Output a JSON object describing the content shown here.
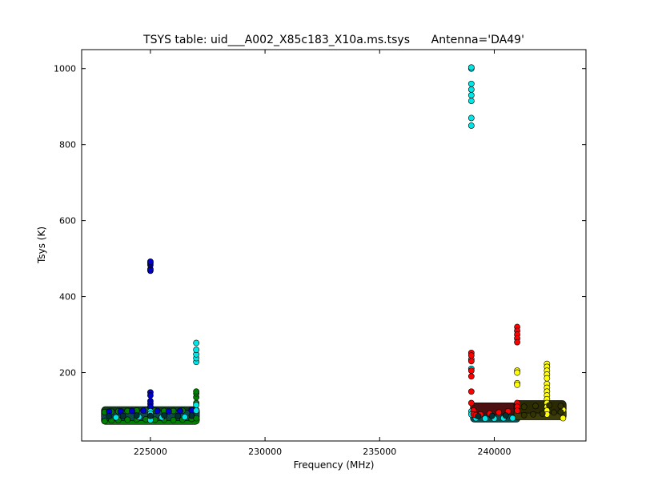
{
  "chart_data": {
    "type": "scatter",
    "title": "TSYS table: uid___A002_X85c183_X10a.ms.tsys      Antenna='DA49'",
    "xlabel": "Frequency (MHz)",
    "ylabel": "Tsys (K)",
    "xlim": [
      222000,
      244000
    ],
    "ylim": [
      20,
      1050
    ],
    "xticks": [
      225000,
      230000,
      235000,
      240000
    ],
    "xtick_labels": [
      "225000",
      "230000",
      "235000",
      "240000"
    ],
    "yticks": [
      200,
      400,
      600,
      800,
      1000
    ],
    "ytick_labels": [
      "200",
      "400",
      "600",
      "800",
      "1000"
    ],
    "grid": false,
    "legend": "none",
    "series": [
      {
        "color": "#008000",
        "points": [
          [
            223000,
            72
          ],
          [
            223000,
            96
          ],
          [
            223300,
            74
          ],
          [
            223300,
            97
          ],
          [
            223600,
            75
          ],
          [
            223600,
            98
          ],
          [
            224000,
            76
          ],
          [
            224000,
            99
          ],
          [
            224400,
            77
          ],
          [
            224400,
            100
          ],
          [
            224800,
            77
          ],
          [
            224800,
            101
          ],
          [
            225200,
            76
          ],
          [
            225200,
            100
          ],
          [
            225600,
            76
          ],
          [
            225600,
            99
          ],
          [
            226000,
            75
          ],
          [
            226000,
            99
          ],
          [
            226400,
            76
          ],
          [
            226400,
            100
          ],
          [
            226800,
            78
          ],
          [
            226800,
            102
          ],
          [
            227000,
            80
          ],
          [
            227000,
            120
          ],
          [
            227000,
            135
          ],
          [
            227000,
            145
          ],
          [
            227000,
            150
          ]
        ]
      },
      {
        "color": "#0000cc",
        "points": [
          [
            225000,
            468
          ],
          [
            225000,
            472
          ],
          [
            225000,
            483
          ],
          [
            225000,
            488
          ],
          [
            225000,
            492
          ],
          [
            225000,
            148
          ],
          [
            225000,
            140
          ],
          [
            225000,
            125
          ],
          [
            225000,
            118
          ],
          [
            225000,
            110
          ],
          [
            223200,
            97
          ],
          [
            223700,
            98
          ],
          [
            224200,
            99
          ],
          [
            224700,
            100
          ],
          [
            225300,
            99
          ],
          [
            225800,
            98
          ],
          [
            226300,
            99
          ],
          [
            226800,
            100
          ]
        ]
      },
      {
        "color": "#00e5e5",
        "points": [
          [
            239000,
            850
          ],
          [
            239000,
            870
          ],
          [
            239000,
            915
          ],
          [
            239000,
            930
          ],
          [
            239000,
            945
          ],
          [
            239000,
            960
          ],
          [
            239000,
            1000
          ],
          [
            239000,
            1003
          ],
          [
            227000,
            228
          ],
          [
            227000,
            238
          ],
          [
            227000,
            248
          ],
          [
            227000,
            260
          ],
          [
            227000,
            278
          ],
          [
            225000,
            98
          ],
          [
            225000,
            92
          ],
          [
            225000,
            75
          ],
          [
            227000,
            100
          ],
          [
            227000,
            115
          ],
          [
            239000,
            235
          ],
          [
            239000,
            210
          ],
          [
            239000,
            98
          ],
          [
            239000,
            90
          ],
          [
            223500,
            82
          ],
          [
            224500,
            83
          ],
          [
            225500,
            82
          ],
          [
            226500,
            83
          ],
          [
            239200,
            80
          ],
          [
            239600,
            79
          ],
          [
            240000,
            79
          ],
          [
            240400,
            80
          ],
          [
            240800,
            80
          ]
        ]
      },
      {
        "color": "#ff0000",
        "points": [
          [
            239000,
            252
          ],
          [
            239000,
            245
          ],
          [
            239000,
            230
          ],
          [
            239000,
            205
          ],
          [
            239000,
            190
          ],
          [
            239000,
            150
          ],
          [
            239000,
            120
          ],
          [
            239100,
            100
          ],
          [
            239100,
            90
          ],
          [
            239200,
            88
          ],
          [
            239400,
            90
          ],
          [
            239800,
            92
          ],
          [
            240200,
            95
          ],
          [
            240600,
            98
          ],
          [
            241000,
            320
          ],
          [
            241000,
            310
          ],
          [
            241000,
            300
          ],
          [
            241000,
            290
          ],
          [
            241000,
            280
          ],
          [
            241000,
            120
          ],
          [
            241000,
            110
          ],
          [
            241000,
            100
          ]
        ]
      },
      {
        "color": "#ffff00",
        "points": [
          [
            241000,
            205
          ],
          [
            241000,
            200
          ],
          [
            241000,
            172
          ],
          [
            241000,
            168
          ],
          [
            242300,
            223
          ],
          [
            242300,
            215
          ],
          [
            242300,
            205
          ],
          [
            242300,
            195
          ],
          [
            242300,
            185
          ],
          [
            242300,
            170
          ],
          [
            242300,
            160
          ],
          [
            242300,
            150
          ],
          [
            242300,
            140
          ],
          [
            242300,
            130
          ],
          [
            242300,
            120
          ],
          [
            242300,
            110
          ],
          [
            242300,
            100
          ],
          [
            242300,
            90
          ],
          [
            243000,
            80
          ],
          [
            243000,
            102
          ]
        ]
      },
      {
        "color": "#003333",
        "points": [
          [
            223200,
            85
          ],
          [
            223800,
            86
          ],
          [
            224400,
            87
          ],
          [
            225000,
            86
          ],
          [
            225600,
            87
          ],
          [
            226200,
            86
          ],
          [
            226800,
            87
          ],
          [
            239300,
            85
          ],
          [
            239900,
            86
          ],
          [
            240500,
            87
          ]
        ]
      },
      {
        "color": "#333300",
        "points": [
          [
            241300,
            88
          ],
          [
            241700,
            90
          ],
          [
            242100,
            92
          ],
          [
            242600,
            95
          ],
          [
            242900,
            96
          ],
          [
            241300,
            110
          ],
          [
            241800,
            112
          ],
          [
            242400,
            114
          ],
          [
            242900,
            112
          ]
        ]
      }
    ],
    "bands": [
      {
        "color": "#008000",
        "x": [
          223000,
          227000
        ],
        "y": [
          72,
          80
        ]
      },
      {
        "color": "#0d3d1a",
        "x": [
          223000,
          227000
        ],
        "y": [
          92,
          102
        ]
      },
      {
        "color": "#0e4a4a",
        "x": [
          223000,
          227000
        ],
        "y": [
          82,
          92
        ]
      },
      {
        "color": "#0e4a4a",
        "x": [
          239100,
          241000
        ],
        "y": [
          78,
          98
        ]
      },
      {
        "color": "#4d1010",
        "x": [
          239100,
          241000
        ],
        "y": [
          98,
          112
        ]
      },
      {
        "color": "#3d3d0a",
        "x": [
          241000,
          243000
        ],
        "y": [
          84,
          98
        ]
      },
      {
        "color": "#2a2a05",
        "x": [
          241000,
          243000
        ],
        "y": [
          102,
          118
        ]
      }
    ]
  }
}
